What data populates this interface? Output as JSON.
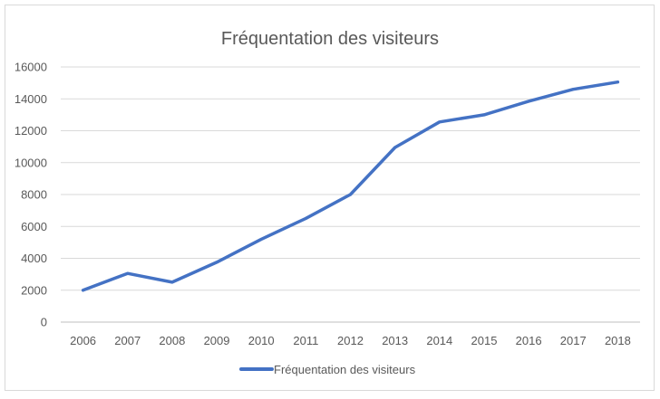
{
  "chart_data": {
    "type": "line",
    "title": "Fréquentation des visiteurs",
    "xlabel": "",
    "ylabel": "",
    "categories": [
      "2006",
      "2007",
      "2008",
      "2009",
      "2010",
      "2011",
      "2012",
      "2013",
      "2014",
      "2015",
      "2016",
      "2017",
      "2018"
    ],
    "series": [
      {
        "name": "Fréquentation des visiteurs",
        "values": [
          2000,
          3050,
          2500,
          3750,
          5200,
          6500,
          8000,
          10950,
          12550,
          13000,
          13850,
          14600,
          15050
        ],
        "color": "#4472c4"
      }
    ],
    "ylim": [
      0,
      16000
    ],
    "yticks": [
      "0",
      "2000",
      "4000",
      "6000",
      "8000",
      "10000",
      "12000",
      "14000",
      "16000"
    ],
    "grid": "horizontal",
    "legend": "bottom"
  }
}
